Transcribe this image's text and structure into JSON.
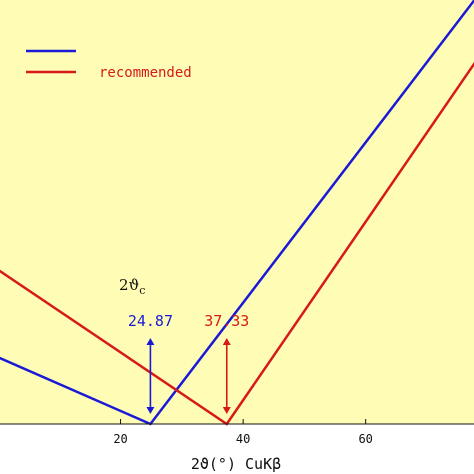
{
  "chart_data": {
    "type": "line",
    "title": "",
    "xlabel": "2ϑ(°) CuKβ",
    "ylabel": "",
    "xlim": [
      0,
      78
    ],
    "ylim": [
      0,
      2.9
    ],
    "xticks": [
      20,
      40,
      60
    ],
    "grid": false,
    "background": "#fffdb5",
    "legend": {
      "placement": "top-left",
      "entries": [
        {
          "name": "",
          "color": "#1a1ad6"
        },
        {
          "name": "recommended",
          "color": "#d61a1a"
        }
      ]
    },
    "series": [
      {
        "name": "",
        "color": "#1a1ad6",
        "points": [
          [
            -2.5,
            0.5
          ],
          [
            24.87,
            0.0
          ],
          [
            78,
            2.9
          ]
        ]
      },
      {
        "name": "recommended",
        "color": "#d61a1a",
        "points": [
          [
            -2.5,
            1.12
          ],
          [
            37.33,
            0.0
          ],
          [
            78,
            2.47
          ]
        ]
      }
    ],
    "annotations": {
      "title": "2ϑc",
      "markers": [
        {
          "label": "24.87",
          "x": 24.87,
          "color": "#1a1ad6"
        },
        {
          "label": "37.33",
          "x": 37.33,
          "color": "#d61a1a"
        }
      ]
    }
  }
}
